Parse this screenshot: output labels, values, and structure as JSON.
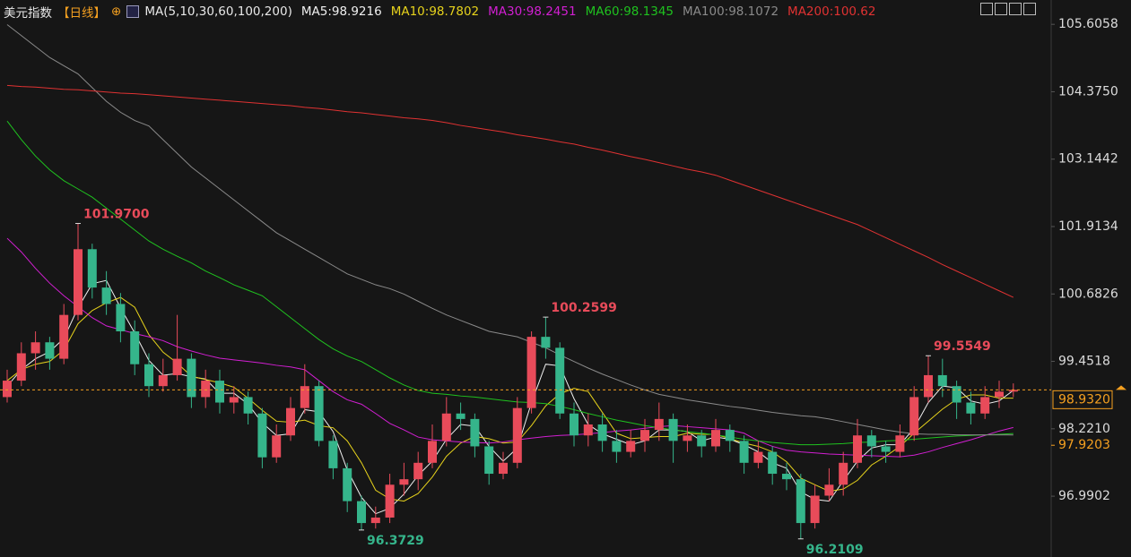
{
  "header": {
    "title": "美元指数",
    "period": "【日线】",
    "ma_set": "MA(5,10,30,60,100,200)"
  },
  "chart_data": {
    "type": "candlestick",
    "up_color": "#e84b5a",
    "down_color": "#35b58b",
    "ylim": [
      95.88,
      106.05
    ],
    "yticks": [
      105.6058,
      {
        "value": 104.375,
        "label": "104.3750"
      },
      103.1442,
      101.9134,
      100.6826,
      99.4518,
      {
        "value": 98.221,
        "label": "98.2210"
      },
      96.9902
    ],
    "ohlc": [
      [
        98.8,
        99.3,
        98.7,
        99.1
      ],
      [
        99.1,
        99.8,
        99.0,
        99.6
      ],
      [
        99.6,
        100.0,
        99.3,
        99.8
      ],
      [
        99.8,
        99.9,
        99.3,
        99.5
      ],
      [
        99.5,
        100.5,
        99.4,
        100.3
      ],
      [
        100.3,
        101.97,
        100.2,
        101.5
      ],
      [
        101.5,
        101.6,
        100.6,
        100.8
      ],
      [
        100.8,
        101.1,
        100.3,
        100.5
      ],
      [
        100.5,
        100.7,
        99.8,
        100.0
      ],
      [
        100.0,
        100.2,
        99.2,
        99.4
      ],
      [
        99.4,
        99.6,
        98.8,
        99.0
      ],
      [
        99.0,
        99.5,
        98.9,
        99.2
      ],
      [
        99.2,
        100.3,
        99.1,
        99.5
      ],
      [
        99.5,
        99.6,
        98.6,
        98.8
      ],
      [
        98.8,
        99.3,
        98.6,
        99.1
      ],
      [
        99.1,
        99.3,
        98.5,
        98.7
      ],
      [
        98.7,
        99.0,
        98.5,
        98.8
      ],
      [
        98.8,
        98.9,
        98.3,
        98.5
      ],
      [
        98.5,
        98.6,
        97.5,
        97.7
      ],
      [
        97.7,
        98.3,
        97.6,
        98.1
      ],
      [
        98.1,
        98.8,
        98.0,
        98.6
      ],
      [
        98.6,
        99.4,
        98.5,
        99.0
      ],
      [
        99.0,
        99.1,
        97.9,
        98.0
      ],
      [
        98.0,
        98.1,
        97.3,
        97.5
      ],
      [
        97.5,
        97.6,
        96.7,
        96.9
      ],
      [
        96.9,
        97.0,
        96.3729,
        96.5
      ],
      [
        96.5,
        96.8,
        96.4,
        96.6
      ],
      [
        96.6,
        97.4,
        96.5,
        97.2
      ],
      [
        97.2,
        97.6,
        97.0,
        97.3
      ],
      [
        97.3,
        97.8,
        97.1,
        97.6
      ],
      [
        97.6,
        98.3,
        97.5,
        98.0
      ],
      [
        98.0,
        98.8,
        97.9,
        98.5
      ],
      [
        98.5,
        98.7,
        98.2,
        98.4
      ],
      [
        98.4,
        98.5,
        97.7,
        97.9
      ],
      [
        97.9,
        98.0,
        97.2,
        97.4
      ],
      [
        97.4,
        97.8,
        97.3,
        97.6
      ],
      [
        97.6,
        98.8,
        97.5,
        98.6
      ],
      [
        98.6,
        100.0,
        98.5,
        99.9
      ],
      [
        99.9,
        100.2599,
        99.5,
        99.7
      ],
      [
        99.7,
        99.8,
        98.4,
        98.5
      ],
      [
        98.5,
        98.7,
        97.9,
        98.1
      ],
      [
        98.1,
        98.5,
        97.9,
        98.3
      ],
      [
        98.3,
        98.5,
        97.8,
        98.0
      ],
      [
        98.0,
        98.2,
        97.6,
        97.8
      ],
      [
        97.8,
        98.2,
        97.7,
        98.0
      ],
      [
        98.0,
        98.4,
        97.8,
        98.2
      ],
      [
        98.2,
        98.7,
        98.0,
        98.4
      ],
      [
        98.4,
        98.5,
        97.6,
        98.0
      ],
      [
        98.0,
        98.3,
        97.8,
        98.1
      ],
      [
        98.1,
        98.2,
        97.7,
        97.9
      ],
      [
        97.9,
        98.4,
        97.8,
        98.2
      ],
      [
        98.2,
        98.3,
        97.8,
        98.0
      ],
      [
        98.0,
        98.1,
        97.4,
        97.6
      ],
      [
        97.6,
        98.0,
        97.5,
        97.8
      ],
      [
        97.8,
        97.9,
        97.2,
        97.4
      ],
      [
        97.4,
        97.6,
        97.1,
        97.3
      ],
      [
        97.3,
        97.4,
        96.2109,
        96.5
      ],
      [
        96.5,
        97.2,
        96.4,
        97.0
      ],
      [
        97.0,
        97.5,
        96.9,
        97.2
      ],
      [
        97.2,
        97.8,
        97.0,
        97.6
      ],
      [
        97.6,
        98.4,
        97.5,
        98.1
      ],
      [
        98.1,
        98.2,
        97.7,
        97.9
      ],
      [
        97.9,
        98.0,
        97.6,
        97.8
      ],
      [
        97.8,
        98.3,
        97.7,
        98.1
      ],
      [
        98.1,
        99.0,
        98.0,
        98.8
      ],
      [
        98.8,
        99.5549,
        98.7,
        99.2
      ],
      [
        99.2,
        99.5,
        98.8,
        99.0
      ],
      [
        99.0,
        99.1,
        98.4,
        98.7
      ],
      [
        98.7,
        98.9,
        98.3,
        98.5
      ],
      [
        98.5,
        99.0,
        98.4,
        98.8
      ],
      [
        98.8,
        99.1,
        98.6,
        98.9
      ],
      [
        98.9,
        99.05,
        98.8,
        98.932
      ]
    ],
    "series": [
      {
        "name": "MA5:98.9216",
        "color": "#f0f0f0",
        "values": [
          99.0,
          99.3,
          99.5,
          99.63,
          99.87,
          100.43,
          100.87,
          100.93,
          100.43,
          99.97,
          99.47,
          99.2,
          99.23,
          99.17,
          99.13,
          98.87,
          98.87,
          98.67,
          98.33,
          98.1,
          98.13,
          98.57,
          98.53,
          98.17,
          97.47,
          96.97,
          96.67,
          96.77,
          97.03,
          97.37,
          97.63,
          98.03,
          98.3,
          98.27,
          97.9,
          97.63,
          97.87,
          98.7,
          99.4,
          99.37,
          98.77,
          98.3,
          98.13,
          98.03,
          97.93,
          98.0,
          98.2,
          98.2,
          98.17,
          98.0,
          98.07,
          98.03,
          97.93,
          97.8,
          97.6,
          97.5,
          97.07,
          96.93,
          96.9,
          97.27,
          97.63,
          97.87,
          97.93,
          97.93,
          98.23,
          98.7,
          99.0,
          98.97,
          98.73,
          98.67,
          98.73,
          98.9216
        ]
      },
      {
        "name": "MA10:98.7802",
        "color": "#e6d21c",
        "values": [
          99.1,
          99.3,
          99.4,
          99.45,
          99.66,
          100.14,
          100.38,
          100.52,
          100.62,
          100.44,
          99.94,
          99.62,
          99.42,
          99.18,
          99.12,
          99.06,
          98.98,
          98.78,
          98.56,
          98.36,
          98.34,
          98.38,
          98.28,
          98.24,
          98.0,
          97.6,
          97.1,
          96.94,
          96.9,
          97.04,
          97.34,
          97.72,
          97.96,
          98.08,
          98.04,
          97.96,
          97.98,
          98.28,
          98.64,
          98.86,
          98.96,
          98.9,
          98.52,
          98.14,
          98.04,
          98.06,
          98.08,
          98.08,
          98.14,
          98.12,
          98.12,
          98.04,
          97.96,
          97.9,
          97.8,
          97.62,
          97.32,
          97.2,
          97.08,
          97.12,
          97.28,
          97.56,
          97.72,
          97.9,
          98.14,
          98.36,
          98.58,
          98.76,
          98.84,
          98.84,
          98.78,
          98.7802
        ]
      },
      {
        "name": "MA30:98.2451",
        "color": "#d21fd2",
        "values": [
          101.7,
          101.45,
          101.15,
          100.88,
          100.65,
          100.45,
          100.25,
          100.1,
          100.03,
          99.96,
          99.9,
          99.83,
          99.72,
          99.64,
          99.57,
          99.51,
          99.48,
          99.45,
          99.42,
          99.38,
          99.35,
          99.3,
          99.1,
          98.9,
          98.75,
          98.67,
          98.5,
          98.32,
          98.2,
          98.07,
          98.02,
          98.0,
          97.98,
          97.97,
          97.96,
          97.98,
          98.02,
          98.05,
          98.08,
          98.1,
          98.11,
          98.13,
          98.15,
          98.18,
          98.2,
          98.23,
          98.26,
          98.28,
          98.26,
          98.24,
          98.22,
          98.2,
          98.14,
          98.0,
          97.9,
          97.83,
          97.8,
          97.78,
          97.76,
          97.75,
          97.74,
          97.73,
          97.72,
          97.71,
          97.74,
          97.8,
          97.88,
          97.95,
          98.02,
          98.1,
          98.18,
          98.2451
        ]
      },
      {
        "name": "MA60:98.1345",
        "color": "#1fc21f",
        "values": [
          103.84,
          103.5,
          103.2,
          102.95,
          102.75,
          102.6,
          102.45,
          102.25,
          102.05,
          101.85,
          101.65,
          101.5,
          101.37,
          101.25,
          101.1,
          100.98,
          100.85,
          100.75,
          100.65,
          100.45,
          100.25,
          100.05,
          99.85,
          99.68,
          99.55,
          99.45,
          99.3,
          99.15,
          99.02,
          98.92,
          98.87,
          98.85,
          98.82,
          98.8,
          98.77,
          98.74,
          98.71,
          98.7,
          98.68,
          98.63,
          98.57,
          98.5,
          98.44,
          98.38,
          98.33,
          98.28,
          98.24,
          98.2,
          98.17,
          98.14,
          98.11,
          98.07,
          98.03,
          98.0,
          97.97,
          97.95,
          97.93,
          97.93,
          97.94,
          97.95,
          97.97,
          97.98,
          98.0,
          98.01,
          98.03,
          98.05,
          98.07,
          98.09,
          98.1,
          98.11,
          98.12,
          98.1345
        ]
      },
      {
        "name": "MA100:98.1072",
        "color": "#8a8a8a",
        "values": [
          105.6,
          105.4,
          105.2,
          105.0,
          104.85,
          104.7,
          104.45,
          104.2,
          104.0,
          103.85,
          103.75,
          103.5,
          103.25,
          103.0,
          102.8,
          102.6,
          102.4,
          102.2,
          102.0,
          101.8,
          101.65,
          101.5,
          101.35,
          101.2,
          101.05,
          100.95,
          100.85,
          100.78,
          100.68,
          100.55,
          100.42,
          100.3,
          100.2,
          100.1,
          100.0,
          99.95,
          99.9,
          99.8,
          99.7,
          99.57,
          99.45,
          99.33,
          99.22,
          99.12,
          99.02,
          98.93,
          98.85,
          98.8,
          98.75,
          98.71,
          98.67,
          98.63,
          98.6,
          98.56,
          98.52,
          98.49,
          98.46,
          98.44,
          98.4,
          98.35,
          98.3,
          98.25,
          98.2,
          98.16,
          98.13,
          98.12,
          98.12,
          98.11,
          98.11,
          98.11,
          98.11,
          98.1072
        ]
      },
      {
        "name": "MA200:100.62",
        "color": "#e03232",
        "values": [
          104.49,
          104.47,
          104.46,
          104.44,
          104.42,
          104.41,
          104.39,
          104.37,
          104.35,
          104.34,
          104.32,
          104.3,
          104.28,
          104.26,
          104.24,
          104.22,
          104.2,
          104.18,
          104.16,
          104.14,
          104.12,
          104.09,
          104.07,
          104.04,
          104.01,
          103.99,
          103.96,
          103.93,
          103.9,
          103.88,
          103.85,
          103.81,
          103.76,
          103.72,
          103.68,
          103.64,
          103.59,
          103.55,
          103.51,
          103.46,
          103.42,
          103.36,
          103.31,
          103.25,
          103.19,
          103.14,
          103.08,
          103.02,
          102.96,
          102.91,
          102.85,
          102.76,
          102.67,
          102.58,
          102.49,
          102.4,
          102.31,
          102.22,
          102.13,
          102.04,
          101.95,
          101.83,
          101.71,
          101.59,
          101.47,
          101.35,
          101.22,
          101.1,
          100.98,
          100.86,
          100.74,
          100.62
        ]
      }
    ],
    "annotations": [
      {
        "value": 101.97,
        "label": "101.9700"
      },
      {
        "value": 100.2599,
        "label": "100.2599"
      },
      {
        "value": 99.5549,
        "label": "99.5549"
      },
      {
        "value": 96.3729,
        "label": "96.3729"
      },
      {
        "value": 96.2109,
        "label": "96.2109"
      }
    ],
    "price_markers": [
      {
        "value": 98.932,
        "label": "98.9320",
        "color": "#f5a020",
        "line": true
      },
      {
        "value": 97.9203,
        "label": "97.9203",
        "color": "#f5a020",
        "line": false
      }
    ]
  }
}
